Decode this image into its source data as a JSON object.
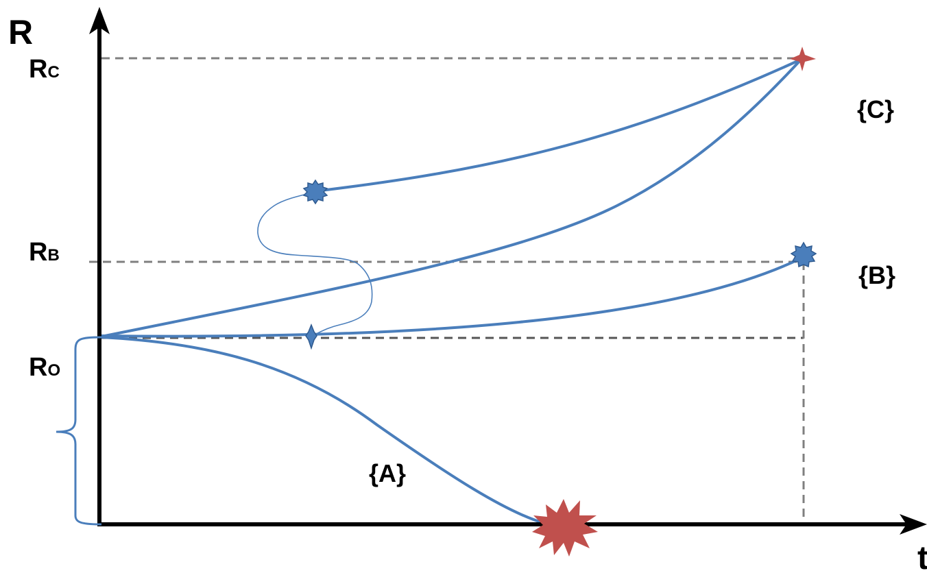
{
  "axes": {
    "y_label": "R",
    "x_label": "t"
  },
  "levels": [
    {
      "id": "rc",
      "main": "R",
      "sub": "C"
    },
    {
      "id": "rb",
      "main": "R",
      "sub": "B"
    },
    {
      "id": "ro",
      "main": "R",
      "sub": "O"
    }
  ],
  "regions": {
    "a": "{A}",
    "b": "{B}",
    "c": "{C}"
  },
  "colors": {
    "axis": "#000000",
    "curve": "#4a7ebb",
    "marker_blue": "#4a7ebb",
    "marker_red": "#c0504d",
    "guide": "#7f7f7f"
  },
  "icons": {
    "failure_marker": "red-burst-icon",
    "target_marker": "red-four-point-star-icon",
    "state_marker": "blue-star-icon"
  }
}
